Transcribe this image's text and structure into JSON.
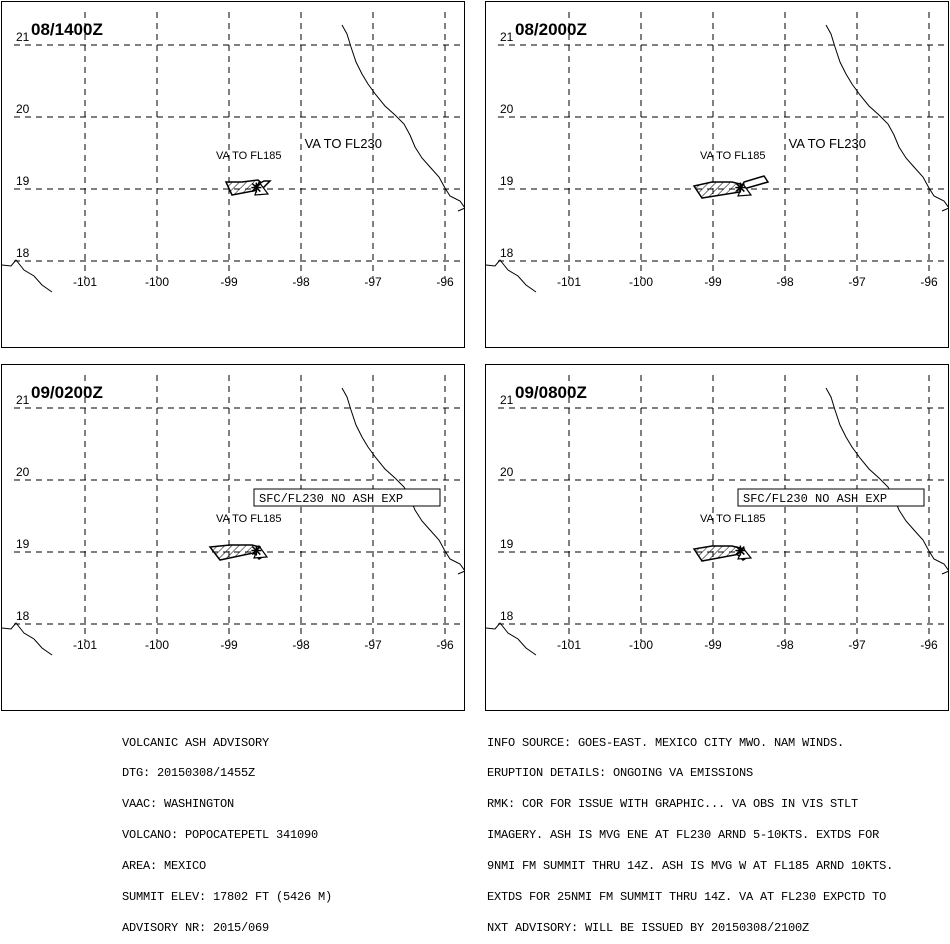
{
  "panels": [
    {
      "time": "08/1400Z",
      "labels": [
        {
          "text": "VA TO FL185",
          "lon": -99.18,
          "lat": 19.42
        },
        {
          "text": "VA TO FL230",
          "lon": -97.95,
          "lat": 19.57
        }
      ],
      "boxed": ""
    },
    {
      "time": "08/2000Z",
      "labels": [
        {
          "text": "VA TO FL185",
          "lon": -99.18,
          "lat": 19.42
        },
        {
          "text": "VA TO FL230",
          "lon": -97.95,
          "lat": 19.57
        }
      ],
      "boxed": ""
    },
    {
      "time": "09/0200Z",
      "labels": [
        {
          "text": "VA TO FL185",
          "lon": -99.18,
          "lat": 19.42
        }
      ],
      "boxed": "SFC/FL230 NO ASH EXP"
    },
    {
      "time": "09/0800Z",
      "labels": [
        {
          "text": "VA TO FL185",
          "lon": -99.18,
          "lat": 19.42
        }
      ],
      "boxed": "SFC/FL230 NO ASH EXP"
    }
  ],
  "axes": {
    "lon_ticks": [
      -101,
      -100,
      -99,
      -98,
      -97,
      -96
    ],
    "lat_ticks": [
      21,
      20,
      19,
      18
    ]
  },
  "volcano": {
    "lon": -98.62,
    "lat": 19.02
  },
  "footer_left": [
    "VOLCANIC ASH ADVISORY",
    "DTG: 20150308/1455Z",
    "VAAC: WASHINGTON",
    "VOLCANO: POPOCATEPETL 341090",
    "AREA: MEXICO",
    "SUMMIT ELEV: 17802 FT (5426 M)",
    "ADVISORY NR: 2015/069"
  ],
  "footer_right": [
    "INFO SOURCE: GOES-EAST. MEXICO CITY MWO. NAM WINDS.",
    "ERUPTION DETAILS: ONGOING VA EMISSIONS",
    "RMK: COR FOR ISSUE WITH GRAPHIC... VA OBS IN VIS STLT",
    "IMAGERY. ASH IS MVG ENE AT FL230 ARND 5-10KTS. EXTDS FOR",
    "9NMI FM SUMMIT THRU 14Z. ASH IS MVG W AT FL185 ARND 10KTS.",
    "EXTDS FOR 25NMI FM SUMMIT THRU 14Z. VA AT FL230 EXPCTD TO",
    "NXT ADVISORY: WILL BE ISSUED BY 20150308/2100Z"
  ]
}
